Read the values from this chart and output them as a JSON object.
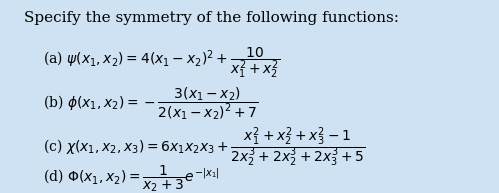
{
  "title": "Specify the symmetry of the following functions:",
  "bg_color": "#cfe2f3",
  "box_color": "#ffffff",
  "text_color": "#000000",
  "title_fontsize": 11.0,
  "body_fontsize": 10.0
}
